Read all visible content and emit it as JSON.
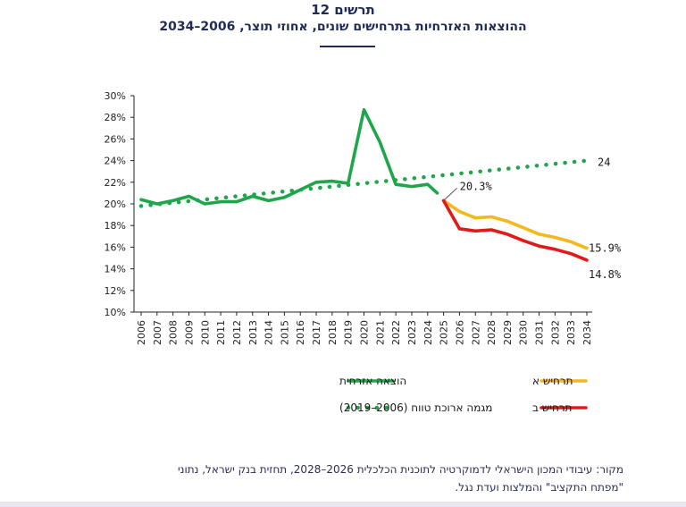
{
  "header": {
    "figure_label": "תרשים 12",
    "title": "ההוצאות האזרחיות בתרחישים שונים, אחוזי תוצר, 2006–2034"
  },
  "chart_data": {
    "type": "line",
    "x": [
      2006,
      2007,
      2008,
      2009,
      2010,
      2011,
      2012,
      2013,
      2014,
      2015,
      2016,
      2017,
      2018,
      2019,
      2020,
      2021,
      2022,
      2023,
      2024,
      2025,
      2026,
      2027,
      2028,
      2029,
      2030,
      2031,
      2032,
      2033,
      2034
    ],
    "ylim": [
      10,
      30
    ],
    "yticks": [
      10,
      12,
      14,
      16,
      18,
      20,
      22,
      24,
      26,
      28,
      30
    ],
    "ytick_labels": [
      "10%",
      "12%",
      "14%",
      "16%",
      "18%",
      "20%",
      "22%",
      "24%",
      "26%",
      "28%",
      "30%"
    ],
    "grid": false,
    "series": [
      {
        "name": "הוצאה אזרחית",
        "color": "#1fa64a",
        "style": "solid",
        "points": [
          [
            2006,
            20.4
          ],
          [
            2007,
            20.0
          ],
          [
            2008,
            20.3
          ],
          [
            2009,
            20.7
          ],
          [
            2010,
            20.0
          ],
          [
            2011,
            20.2
          ],
          [
            2012,
            20.2
          ],
          [
            2013,
            20.7
          ],
          [
            2014,
            20.3
          ],
          [
            2015,
            20.6
          ],
          [
            2016,
            21.3
          ],
          [
            2017,
            22.0
          ],
          [
            2018,
            22.1
          ],
          [
            2019,
            21.9
          ],
          [
            2020,
            28.7
          ],
          [
            2021,
            25.7
          ],
          [
            2022,
            21.8
          ],
          [
            2023,
            21.6
          ],
          [
            2024,
            21.8
          ],
          [
            2024.6,
            21.0
          ]
        ]
      },
      {
        "name": "מגמה ארוכת טווח (2006–2019)",
        "color": "#1fa64a",
        "style": "dotted",
        "points": [
          [
            2006,
            19.8
          ],
          [
            2034,
            24.0
          ]
        ]
      },
      {
        "name": "תרחיש א",
        "color": "#f3b81c",
        "style": "solid",
        "points": [
          [
            2025,
            20.3
          ],
          [
            2026,
            19.3
          ],
          [
            2027,
            18.7
          ],
          [
            2028,
            18.8
          ],
          [
            2029,
            18.4
          ],
          [
            2030,
            17.8
          ],
          [
            2031,
            17.2
          ],
          [
            2032,
            16.9
          ],
          [
            2033,
            16.5
          ],
          [
            2034,
            15.9
          ]
        ]
      },
      {
        "name": "תרחיש ב",
        "color": "#e01a1a",
        "style": "solid",
        "points": [
          [
            2025,
            20.3
          ],
          [
            2026,
            17.7
          ],
          [
            2027,
            17.5
          ],
          [
            2028,
            17.6
          ],
          [
            2029,
            17.2
          ],
          [
            2030,
            16.6
          ],
          [
            2031,
            16.1
          ],
          [
            2032,
            15.8
          ],
          [
            2033,
            15.4
          ],
          [
            2034,
            14.8
          ]
        ]
      }
    ],
    "annotations": [
      {
        "x": 2025,
        "y": 20.3,
        "text": "20.3%"
      },
      {
        "x": 2034,
        "y": 24.0,
        "text": "24"
      },
      {
        "x": 2034,
        "y": 15.9,
        "text": "15.9%"
      },
      {
        "x": 2034,
        "y": 14.8,
        "text": "14.8%"
      }
    ]
  },
  "legend": [
    {
      "label": "הוצאה אזרחית",
      "color": "#1fa64a",
      "style": "solid"
    },
    {
      "label": "תרחיש א",
      "color": "#f3b81c",
      "style": "solid"
    },
    {
      "label": "מגמה ארוכת טווח (2006–2019)",
      "color": "#1fa64a",
      "style": "dotted"
    },
    {
      "label": "תרחיש ב",
      "color": "#e01a1a",
      "style": "solid"
    }
  ],
  "source": {
    "line1": "מקור: עיבודי המכון הישראלי לדמוקרטיה לתוכנית הכלכלית 2026–2028, תחזית בנק ישראל, נתוני",
    "line2": "\"מפתח התקציב\" והמלצות ועדת נגל."
  }
}
